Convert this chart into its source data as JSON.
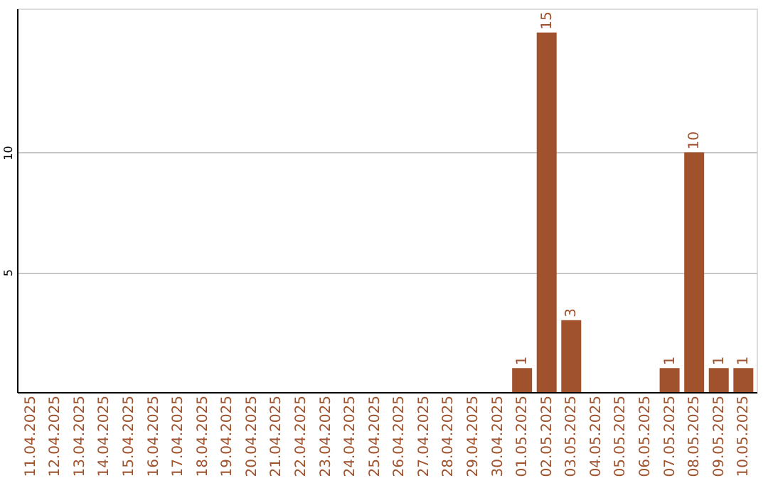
{
  "chart_data": {
    "type": "bar",
    "categories": [
      "11.04.2025",
      "12.04.2025",
      "13.04.2025",
      "14.04.2025",
      "15.04.2025",
      "16.04.2025",
      "17.04.2025",
      "18.04.2025",
      "19.04.2025",
      "20.04.2025",
      "21.04.2025",
      "22.04.2025",
      "23.04.2025",
      "24.04.2025",
      "25.04.2025",
      "26.04.2025",
      "27.04.2025",
      "28.04.2025",
      "29.04.2025",
      "30.04.2025",
      "01.05.2025",
      "02.05.2025",
      "03.05.2025",
      "04.05.2025",
      "05.05.2025",
      "06.05.2025",
      "07.05.2025",
      "08.05.2025",
      "09.05.2025",
      "10.05.2025"
    ],
    "values": [
      0,
      0,
      0,
      0,
      0,
      0,
      0,
      0,
      0,
      0,
      0,
      0,
      0,
      0,
      0,
      0,
      0,
      0,
      0,
      0,
      1,
      15,
      3,
      0,
      0,
      0,
      1,
      10,
      1,
      1
    ],
    "value_labels": [
      null,
      null,
      null,
      null,
      null,
      null,
      null,
      null,
      null,
      null,
      null,
      null,
      null,
      null,
      null,
      null,
      null,
      null,
      null,
      null,
      "1",
      "15",
      "3",
      null,
      null,
      null,
      "1",
      "10",
      "1",
      "1"
    ],
    "color": "#a0522d",
    "ylim": [
      0,
      16
    ],
    "yticks": [
      5,
      10
    ],
    "grid": "y"
  }
}
